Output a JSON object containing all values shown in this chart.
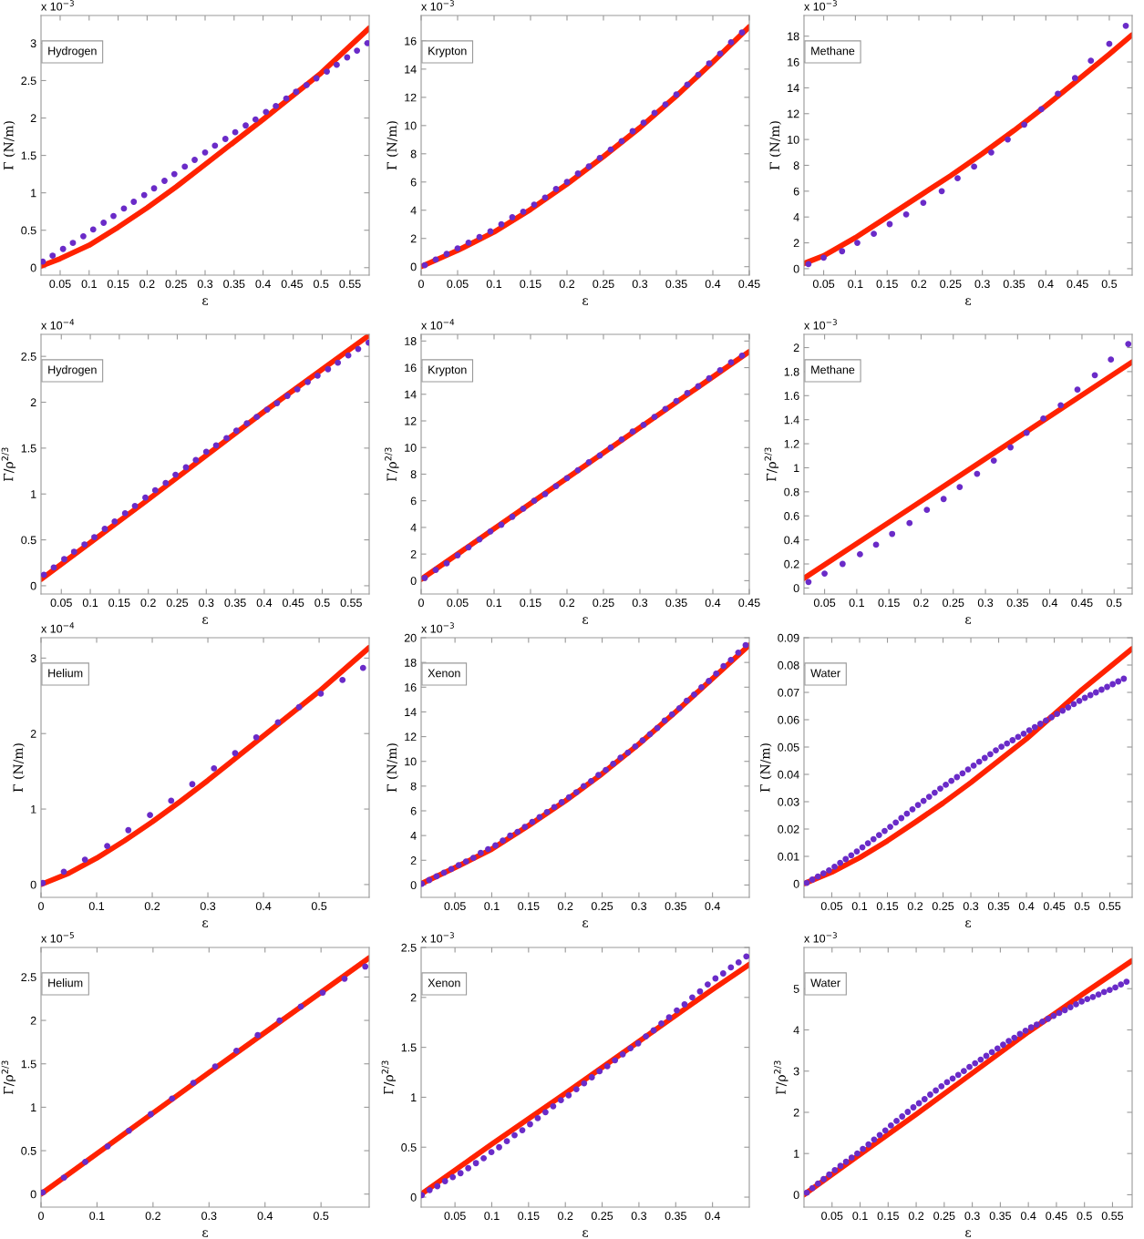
{
  "chart_data": [
    {
      "type": "scatter",
      "xlabel": "ε",
      "ylabel": "Γ (N/m)",
      "annotations": [
        "x 10$^{−3}$",
        "Hydrogen"
      ],
      "xlim": [
        0.017,
        0.583
      ],
      "ylim": [
        -0.1,
        3.37
      ],
      "xticks": [
        0.05,
        0.1,
        0.15,
        0.2,
        0.25,
        0.3,
        0.35,
        0.4,
        0.45,
        0.5,
        0.55
      ],
      "yticks": [
        0,
        0.5,
        1,
        1.5,
        2,
        2.5,
        3
      ],
      "series": [
        {
          "marker": "circle",
          "color": "#6a2bc8",
          "x": [
            0.02,
            0.037,
            0.055,
            0.072,
            0.09,
            0.107,
            0.125,
            0.142,
            0.16,
            0.177,
            0.195,
            0.212,
            0.23,
            0.247,
            0.265,
            0.282,
            0.3,
            0.317,
            0.335,
            0.352,
            0.37,
            0.387,
            0.405,
            0.422,
            0.44,
            0.457,
            0.475,
            0.492,
            0.51,
            0.527,
            0.545,
            0.562,
            0.58
          ],
          "values": [
            0.08,
            0.16,
            0.25,
            0.33,
            0.42,
            0.51,
            0.6,
            0.69,
            0.79,
            0.88,
            0.97,
            1.06,
            1.16,
            1.25,
            1.35,
            1.44,
            1.54,
            1.63,
            1.72,
            1.81,
            1.9,
            1.98,
            2.08,
            2.16,
            2.26,
            2.35,
            2.44,
            2.53,
            2.62,
            2.71,
            2.81,
            2.9,
            3.0
          ]
        },
        {
          "type": "line",
          "line_style": "solid",
          "color": "#ff2200",
          "x": [
            0.017,
            0.05,
            0.1,
            0.15,
            0.2,
            0.25,
            0.3,
            0.4,
            0.5,
            0.583
          ],
          "values": [
            0.02,
            0.12,
            0.3,
            0.54,
            0.8,
            1.08,
            1.38,
            1.98,
            2.6,
            3.2
          ]
        }
      ]
    },
    {
      "type": "scatter",
      "xlabel": "ε",
      "ylabel": "Γ (N/m)",
      "annotations": [
        "x 10$^{−3}$",
        "Krypton"
      ],
      "xlim": [
        0,
        0.45
      ],
      "ylim": [
        -0.6,
        17.8
      ],
      "xticks": [
        0,
        0.05,
        0.1,
        0.15,
        0.2,
        0.25,
        0.3,
        0.35,
        0.4,
        0.45
      ],
      "yticks": [
        0,
        2,
        4,
        6,
        8,
        10,
        12,
        14,
        16
      ],
      "series": [
        {
          "marker": "circle",
          "color": "#6a2bc8",
          "x": [
            0.005,
            0.02,
            0.035,
            0.05,
            0.065,
            0.08,
            0.095,
            0.11,
            0.125,
            0.14,
            0.155,
            0.17,
            0.185,
            0.2,
            0.215,
            0.23,
            0.245,
            0.26,
            0.275,
            0.29,
            0.305,
            0.32,
            0.335,
            0.35,
            0.365,
            0.38,
            0.395,
            0.41,
            0.425,
            0.44
          ],
          "values": [
            0.1,
            0.5,
            0.9,
            1.3,
            1.7,
            2.1,
            2.5,
            3.0,
            3.5,
            3.9,
            4.4,
            4.9,
            5.5,
            6.0,
            6.6,
            7.1,
            7.7,
            8.3,
            8.9,
            9.6,
            10.2,
            10.9,
            11.5,
            12.2,
            12.9,
            13.6,
            14.4,
            15.1,
            15.9,
            16.6
          ]
        },
        {
          "type": "line",
          "line_style": "solid",
          "color": "#ff2200",
          "x": [
            0,
            0.05,
            0.1,
            0.15,
            0.2,
            0.25,
            0.3,
            0.35,
            0.4,
            0.45
          ],
          "values": [
            0,
            1.15,
            2.45,
            4.05,
            5.85,
            7.8,
            9.85,
            12.1,
            14.5,
            17.0
          ]
        }
      ]
    },
    {
      "type": "scatter",
      "xlabel": "ε",
      "ylabel": "Γ (N/m)",
      "annotations": [
        "x 10$^{−3}$",
        "Methane"
      ],
      "xlim": [
        0.019,
        0.536
      ],
      "ylim": [
        -0.5,
        19.6
      ],
      "xticks": [
        0.05,
        0.1,
        0.15,
        0.2,
        0.25,
        0.3,
        0.35,
        0.4,
        0.45,
        0.5
      ],
      "yticks": [
        0,
        2,
        4,
        6,
        8,
        10,
        12,
        14,
        16,
        18
      ],
      "series": [
        {
          "marker": "circle",
          "color": "#6a2bc8",
          "x": [
            0.026,
            0.05,
            0.079,
            0.103,
            0.129,
            0.154,
            0.18,
            0.207,
            0.236,
            0.261,
            0.287,
            0.314,
            0.34,
            0.366,
            0.393,
            0.419,
            0.446,
            0.471,
            0.5,
            0.526
          ],
          "values": [
            0.35,
            0.85,
            1.35,
            2.0,
            2.7,
            3.45,
            4.2,
            5.1,
            6.0,
            7.0,
            7.9,
            9.0,
            10.0,
            11.15,
            12.35,
            13.55,
            14.75,
            16.1,
            17.4,
            18.8
          ]
        },
        {
          "type": "line",
          "line_style": "solid",
          "color": "#ff2200",
          "x": [
            0.019,
            0.05,
            0.1,
            0.15,
            0.2,
            0.25,
            0.3,
            0.35,
            0.4,
            0.45,
            0.5,
            0.536
          ],
          "values": [
            0.4,
            1.0,
            2.4,
            4.0,
            5.6,
            7.2,
            8.9,
            10.7,
            12.6,
            14.6,
            16.6,
            18.1
          ]
        }
      ]
    },
    {
      "type": "scatter",
      "xlabel": "ε",
      "ylabel": "Γ/ρ$^{2/3}$",
      "annotations": [
        "x 10$^{−4}$",
        "Hydrogen"
      ],
      "xlim": [
        0.015,
        0.581
      ],
      "ylim": [
        -0.09,
        2.74
      ],
      "xticks": [
        0.05,
        0.1,
        0.15,
        0.2,
        0.25,
        0.3,
        0.35,
        0.4,
        0.45,
        0.5,
        0.55
      ],
      "yticks": [
        0,
        0.5,
        1,
        1.5,
        2,
        2.5
      ],
      "series": [
        {
          "marker": "circle",
          "color": "#6a2bc8",
          "x": [
            0.02,
            0.037,
            0.055,
            0.072,
            0.09,
            0.107,
            0.125,
            0.142,
            0.16,
            0.177,
            0.195,
            0.212,
            0.23,
            0.247,
            0.265,
            0.282,
            0.3,
            0.317,
            0.335,
            0.352,
            0.37,
            0.387,
            0.405,
            0.422,
            0.44,
            0.457,
            0.475,
            0.492,
            0.51,
            0.527,
            0.545,
            0.562,
            0.58
          ],
          "values": [
            0.12,
            0.2,
            0.29,
            0.37,
            0.45,
            0.53,
            0.62,
            0.7,
            0.79,
            0.87,
            0.96,
            1.04,
            1.12,
            1.21,
            1.29,
            1.37,
            1.46,
            1.53,
            1.61,
            1.69,
            1.77,
            1.84,
            1.92,
            1.99,
            2.07,
            2.14,
            2.22,
            2.29,
            2.36,
            2.43,
            2.51,
            2.58,
            2.65
          ]
        },
        {
          "type": "line",
          "line_style": "solid",
          "color": "#ff2200",
          "x": [
            0.015,
            0.1,
            0.2,
            0.3,
            0.4,
            0.5,
            0.581
          ],
          "values": [
            0.07,
            0.47,
            0.94,
            1.42,
            1.9,
            2.36,
            2.73
          ]
        }
      ]
    },
    {
      "type": "scatter",
      "xlabel": "ε",
      "ylabel": "Γ/ρ$^{2/3}$",
      "annotations": [
        "x 10$^{−4}$",
        "Krypton"
      ],
      "xlim": [
        0,
        0.45
      ],
      "ylim": [
        -1,
        18.5
      ],
      "xticks": [
        0,
        0.05,
        0.1,
        0.15,
        0.2,
        0.25,
        0.3,
        0.35,
        0.4,
        0.45
      ],
      "yticks": [
        0,
        2,
        4,
        6,
        8,
        10,
        12,
        14,
        16,
        18
      ],
      "series": [
        {
          "marker": "circle",
          "color": "#6a2bc8",
          "x": [
            0.005,
            0.02,
            0.035,
            0.05,
            0.065,
            0.08,
            0.095,
            0.11,
            0.125,
            0.14,
            0.155,
            0.17,
            0.185,
            0.2,
            0.215,
            0.23,
            0.245,
            0.26,
            0.275,
            0.29,
            0.305,
            0.32,
            0.335,
            0.35,
            0.365,
            0.38,
            0.395,
            0.41,
            0.425,
            0.44
          ],
          "values": [
            0.2,
            0.8,
            1.3,
            1.9,
            2.5,
            3.1,
            3.7,
            4.2,
            4.8,
            5.4,
            6.0,
            6.5,
            7.1,
            7.7,
            8.3,
            8.9,
            9.4,
            10.0,
            10.6,
            11.2,
            11.7,
            12.3,
            12.9,
            13.5,
            14.1,
            14.6,
            15.2,
            15.8,
            16.4,
            16.9
          ]
        },
        {
          "type": "line",
          "line_style": "solid",
          "color": "#ff2200",
          "x": [
            0,
            0.45
          ],
          "values": [
            0.1,
            17.2
          ]
        }
      ]
    },
    {
      "type": "scatter",
      "xlabel": "ε",
      "ylabel": "Γ/ρ$^{2/3}$",
      "annotations": [
        "x 10$^{−3}$",
        "Methane"
      ],
      "xlim": [
        0.018,
        0.528
      ],
      "ylim": [
        -0.05,
        2.11
      ],
      "xticks": [
        0.05,
        0.1,
        0.15,
        0.2,
        0.25,
        0.3,
        0.35,
        0.4,
        0.45,
        0.5
      ],
      "yticks": [
        0,
        0.2,
        0.4,
        0.6,
        0.8,
        1,
        1.2,
        1.4,
        1.6,
        1.8,
        2
      ],
      "series": [
        {
          "marker": "circle",
          "color": "#6a2bc8",
          "x": [
            0.025,
            0.05,
            0.078,
            0.105,
            0.13,
            0.155,
            0.182,
            0.209,
            0.235,
            0.26,
            0.287,
            0.313,
            0.339,
            0.364,
            0.39,
            0.417,
            0.443,
            0.47,
            0.495,
            0.522
          ],
          "values": [
            0.05,
            0.12,
            0.2,
            0.28,
            0.36,
            0.45,
            0.54,
            0.65,
            0.74,
            0.84,
            0.95,
            1.06,
            1.17,
            1.29,
            1.41,
            1.52,
            1.65,
            1.77,
            1.9,
            2.03
          ]
        },
        {
          "type": "line",
          "line_style": "solid",
          "color": "#ff2200",
          "x": [
            0.018,
            0.528
          ],
          "values": [
            0.08,
            1.88
          ]
        }
      ]
    },
    {
      "type": "scatter",
      "xlabel": "ε",
      "ylabel": "Γ (N/m)",
      "annotations": [
        "x 10$^{−4}$",
        "Helium"
      ],
      "xlim": [
        0,
        0.59
      ],
      "ylim": [
        -0.17,
        3.27
      ],
      "xticks": [
        0,
        0.1,
        0.2,
        0.3,
        0.4,
        0.5
      ],
      "yticks": [
        0,
        1,
        2,
        3
      ],
      "series": [
        {
          "marker": "circle",
          "color": "#6a2bc8",
          "x": [
            0.003,
            0.041,
            0.079,
            0.119,
            0.157,
            0.196,
            0.234,
            0.272,
            0.311,
            0.349,
            0.387,
            0.426,
            0.464,
            0.503,
            0.542,
            0.579
          ],
          "values": [
            0.02,
            0.17,
            0.33,
            0.51,
            0.72,
            0.92,
            1.11,
            1.33,
            1.54,
            1.74,
            1.95,
            2.15,
            2.35,
            2.53,
            2.71,
            2.87
          ]
        },
        {
          "type": "line",
          "line_style": "solid",
          "color": "#ff2200",
          "x": [
            0,
            0.05,
            0.1,
            0.15,
            0.2,
            0.25,
            0.3,
            0.4,
            0.5,
            0.59
          ],
          "values": [
            0,
            0.15,
            0.35,
            0.58,
            0.83,
            1.1,
            1.38,
            1.97,
            2.56,
            3.14
          ]
        }
      ]
    },
    {
      "type": "scatter",
      "xlabel": "ε",
      "ylabel": "Γ (N/m)",
      "annotations": [
        "x 10$^{−3}$",
        "Xenon"
      ],
      "xlim": [
        0.004,
        0.45
      ],
      "ylim": [
        -1,
        20
      ],
      "xticks": [
        0.05,
        0.1,
        0.15,
        0.2,
        0.25,
        0.3,
        0.35,
        0.4
      ],
      "yticks": [
        0,
        2,
        4,
        6,
        8,
        10,
        12,
        14,
        16,
        18,
        20
      ],
      "series": [
        {
          "marker": "circle",
          "color": "#6a2bc8",
          "x": [
            0.005,
            0.015,
            0.025,
            0.035,
            0.045,
            0.055,
            0.065,
            0.075,
            0.085,
            0.095,
            0.105,
            0.115,
            0.125,
            0.135,
            0.145,
            0.155,
            0.165,
            0.175,
            0.185,
            0.195,
            0.205,
            0.215,
            0.225,
            0.235,
            0.245,
            0.255,
            0.265,
            0.275,
            0.285,
            0.295,
            0.305,
            0.315,
            0.325,
            0.335,
            0.345,
            0.355,
            0.365,
            0.375,
            0.385,
            0.395,
            0.405,
            0.415,
            0.425,
            0.435,
            0.445
          ],
          "values": [
            0.1,
            0.4,
            0.7,
            1.0,
            1.3,
            1.6,
            1.9,
            2.2,
            2.6,
            2.9,
            3.2,
            3.6,
            4.0,
            4.3,
            4.7,
            5.1,
            5.5,
            5.9,
            6.3,
            6.7,
            7.1,
            7.5,
            8.0,
            8.4,
            8.9,
            9.3,
            9.8,
            10.3,
            10.7,
            11.2,
            11.7,
            12.2,
            12.7,
            13.3,
            13.8,
            14.3,
            14.9,
            15.4,
            16.0,
            16.5,
            17.1,
            17.7,
            18.2,
            18.8,
            19.4
          ]
        },
        {
          "type": "line",
          "line_style": "solid",
          "color": "#ff2200",
          "x": [
            0.004,
            0.05,
            0.1,
            0.15,
            0.2,
            0.25,
            0.3,
            0.35,
            0.4,
            0.45
          ],
          "values": [
            0.1,
            1.4,
            2.9,
            4.8,
            6.8,
            9.0,
            11.4,
            14.0,
            16.7,
            19.4
          ]
        }
      ]
    },
    {
      "type": "scatter",
      "xlabel": "ε",
      "ylabel": "Γ (N/m)",
      "annotations": [
        "Water"
      ],
      "xlim": [
        0,
        0.59
      ],
      "ylim": [
        -0.005,
        0.09
      ],
      "xticks": [
        0.05,
        0.1,
        0.15,
        0.2,
        0.25,
        0.3,
        0.35,
        0.4,
        0.45,
        0.5,
        0.55
      ],
      "yticks": [
        0,
        0.01,
        0.02,
        0.03,
        0.04,
        0.05,
        0.06,
        0.07,
        0.08,
        0.09
      ],
      "series": [
        {
          "marker": "circle",
          "color": "#6a2bc8",
          "x": [
            0.005,
            0.015,
            0.025,
            0.035,
            0.045,
            0.055,
            0.065,
            0.075,
            0.085,
            0.095,
            0.105,
            0.115,
            0.125,
            0.135,
            0.145,
            0.155,
            0.165,
            0.175,
            0.185,
            0.195,
            0.205,
            0.215,
            0.225,
            0.235,
            0.245,
            0.255,
            0.265,
            0.275,
            0.285,
            0.295,
            0.305,
            0.315,
            0.325,
            0.335,
            0.345,
            0.355,
            0.365,
            0.375,
            0.385,
            0.395,
            0.405,
            0.415,
            0.425,
            0.435,
            0.445,
            0.455,
            0.465,
            0.475,
            0.485,
            0.495,
            0.505,
            0.515,
            0.525,
            0.535,
            0.545,
            0.555,
            0.565,
            0.575
          ],
          "values": [
            0.0003,
            0.0015,
            0.0026,
            0.0038,
            0.0049,
            0.0062,
            0.0076,
            0.009,
            0.0104,
            0.0118,
            0.0133,
            0.0148,
            0.0163,
            0.0178,
            0.0193,
            0.0208,
            0.0224,
            0.024,
            0.0256,
            0.0272,
            0.0288,
            0.0303,
            0.0318,
            0.0333,
            0.0348,
            0.0362,
            0.0376,
            0.039,
            0.0404,
            0.0418,
            0.0432,
            0.0446,
            0.046,
            0.0474,
            0.0488,
            0.0501,
            0.0513,
            0.0525,
            0.0537,
            0.0549,
            0.0561,
            0.0573,
            0.0585,
            0.0597,
            0.0609,
            0.0621,
            0.0633,
            0.0645,
            0.0657,
            0.0669,
            0.068,
            0.069,
            0.07,
            0.071,
            0.072,
            0.073,
            0.074,
            0.075
          ]
        },
        {
          "type": "line",
          "line_style": "solid",
          "color": "#ff2200",
          "x": [
            0,
            0.05,
            0.1,
            0.15,
            0.2,
            0.25,
            0.3,
            0.35,
            0.4,
            0.45,
            0.5,
            0.59
          ],
          "values": [
            0,
            0.0042,
            0.0095,
            0.0157,
            0.0225,
            0.0295,
            0.037,
            0.045,
            0.053,
            0.062,
            0.071,
            0.086
          ]
        }
      ]
    },
    {
      "type": "scatter",
      "xlabel": "ε",
      "ylabel": "Γ/ρ$^{2/3}$",
      "annotations": [
        "x 10$^{−5}$",
        "Helium"
      ],
      "xlim": [
        0,
        0.586
      ],
      "ylim": [
        -0.15,
        2.84
      ],
      "xticks": [
        0,
        0.1,
        0.2,
        0.3,
        0.4,
        0.5
      ],
      "yticks": [
        0,
        0.5,
        1,
        1.5,
        2,
        2.5
      ],
      "series": [
        {
          "marker": "circle",
          "color": "#6a2bc8",
          "x": [
            0.003,
            0.041,
            0.079,
            0.119,
            0.157,
            0.196,
            0.234,
            0.272,
            0.311,
            0.349,
            0.387,
            0.426,
            0.464,
            0.503,
            0.542,
            0.579
          ],
          "values": [
            0.02,
            0.19,
            0.37,
            0.55,
            0.73,
            0.92,
            1.1,
            1.28,
            1.47,
            1.65,
            1.83,
            2.0,
            2.16,
            2.32,
            2.48,
            2.62
          ]
        },
        {
          "type": "line",
          "line_style": "solid",
          "color": "#ff2200",
          "x": [
            0,
            0.3,
            0.586
          ],
          "values": [
            0,
            1.4,
            2.72
          ]
        }
      ]
    },
    {
      "type": "scatter",
      "xlabel": "ε",
      "ylabel": "Γ/ρ$^{2/3}$",
      "annotations": [
        "x 10$^{−3}$",
        "Xenon"
      ],
      "xlim": [
        0.004,
        0.45
      ],
      "ylim": [
        -0.1,
        2.5
      ],
      "xticks": [
        0.05,
        0.1,
        0.15,
        0.2,
        0.25,
        0.3,
        0.35,
        0.4
      ],
      "yticks": [
        0,
        0.5,
        1,
        1.5,
        2,
        2.5
      ],
      "series": [
        {
          "marker": "circle",
          "color": "#6a2bc8",
          "x": [
            0.005,
            0.0155,
            0.026,
            0.0365,
            0.047,
            0.0575,
            0.068,
            0.0785,
            0.089,
            0.0995,
            0.11,
            0.1205,
            0.131,
            0.1415,
            0.152,
            0.1625,
            0.173,
            0.1835,
            0.194,
            0.2045,
            0.215,
            0.2255,
            0.236,
            0.2465,
            0.257,
            0.2675,
            0.278,
            0.2885,
            0.299,
            0.3095,
            0.32,
            0.3305,
            0.341,
            0.3515,
            0.362,
            0.3725,
            0.383,
            0.3935,
            0.404,
            0.4145,
            0.425,
            0.4355,
            0.446
          ],
          "values": [
            0.02,
            0.07,
            0.11,
            0.16,
            0.2,
            0.24,
            0.29,
            0.34,
            0.39,
            0.45,
            0.5,
            0.56,
            0.62,
            0.67,
            0.73,
            0.79,
            0.85,
            0.91,
            0.97,
            1.02,
            1.08,
            1.14,
            1.2,
            1.26,
            1.31,
            1.37,
            1.43,
            1.49,
            1.54,
            1.61,
            1.67,
            1.74,
            1.8,
            1.87,
            1.93,
            2.0,
            2.06,
            2.13,
            2.19,
            2.24,
            2.3,
            2.35,
            2.41
          ]
        },
        {
          "type": "line",
          "line_style": "solid",
          "color": "#ff2200",
          "x": [
            0.004,
            0.1,
            0.2,
            0.3,
            0.4,
            0.45
          ],
          "values": [
            0.03,
            0.53,
            1.04,
            1.56,
            2.08,
            2.33
          ]
        }
      ]
    },
    {
      "type": "scatter",
      "xlabel": "ε",
      "ylabel": "Γ/ρ$^{2/3}$",
      "annotations": [
        "x 10$^{−3}$",
        "Water"
      ],
      "xlim": [
        0,
        0.585
      ],
      "ylim": [
        -0.3,
        6
      ],
      "xticks": [
        0.05,
        0.1,
        0.15,
        0.2,
        0.25,
        0.3,
        0.35,
        0.4,
        0.45,
        0.5,
        0.55
      ],
      "yticks": [
        0,
        1,
        2,
        3,
        4,
        5
      ],
      "series": [
        {
          "marker": "circle",
          "color": "#6a2bc8",
          "x": [
            0.005,
            0.015,
            0.025,
            0.035,
            0.045,
            0.055,
            0.065,
            0.075,
            0.085,
            0.095,
            0.105,
            0.115,
            0.125,
            0.135,
            0.145,
            0.155,
            0.165,
            0.175,
            0.185,
            0.195,
            0.205,
            0.215,
            0.225,
            0.235,
            0.245,
            0.255,
            0.265,
            0.275,
            0.285,
            0.295,
            0.305,
            0.315,
            0.325,
            0.335,
            0.345,
            0.355,
            0.365,
            0.375,
            0.385,
            0.395,
            0.405,
            0.415,
            0.425,
            0.435,
            0.445,
            0.455,
            0.465,
            0.475,
            0.485,
            0.495,
            0.505,
            0.515,
            0.525,
            0.535,
            0.545,
            0.555,
            0.565,
            0.575
          ],
          "values": [
            0.05,
            0.16,
            0.27,
            0.38,
            0.49,
            0.6,
            0.7,
            0.8,
            0.9,
            1.0,
            1.11,
            1.22,
            1.34,
            1.45,
            1.56,
            1.68,
            1.79,
            1.9,
            2.01,
            2.12,
            2.22,
            2.32,
            2.43,
            2.53,
            2.63,
            2.73,
            2.82,
            2.91,
            3.0,
            3.1,
            3.19,
            3.28,
            3.37,
            3.46,
            3.55,
            3.64,
            3.73,
            3.81,
            3.9,
            3.98,
            4.06,
            4.13,
            4.2,
            4.27,
            4.34,
            4.41,
            4.48,
            4.55,
            4.62,
            4.69,
            4.75,
            4.8,
            4.86,
            4.92,
            4.97,
            5.03,
            5.1,
            5.17
          ]
        },
        {
          "type": "line",
          "line_style": "solid",
          "color": "#ff2200",
          "x": [
            0,
            0.1,
            0.2,
            0.3,
            0.4,
            0.45,
            0.5,
            0.585
          ],
          "values": [
            0,
            0.98,
            1.95,
            2.95,
            3.95,
            4.42,
            4.9,
            5.68
          ]
        }
      ]
    }
  ]
}
